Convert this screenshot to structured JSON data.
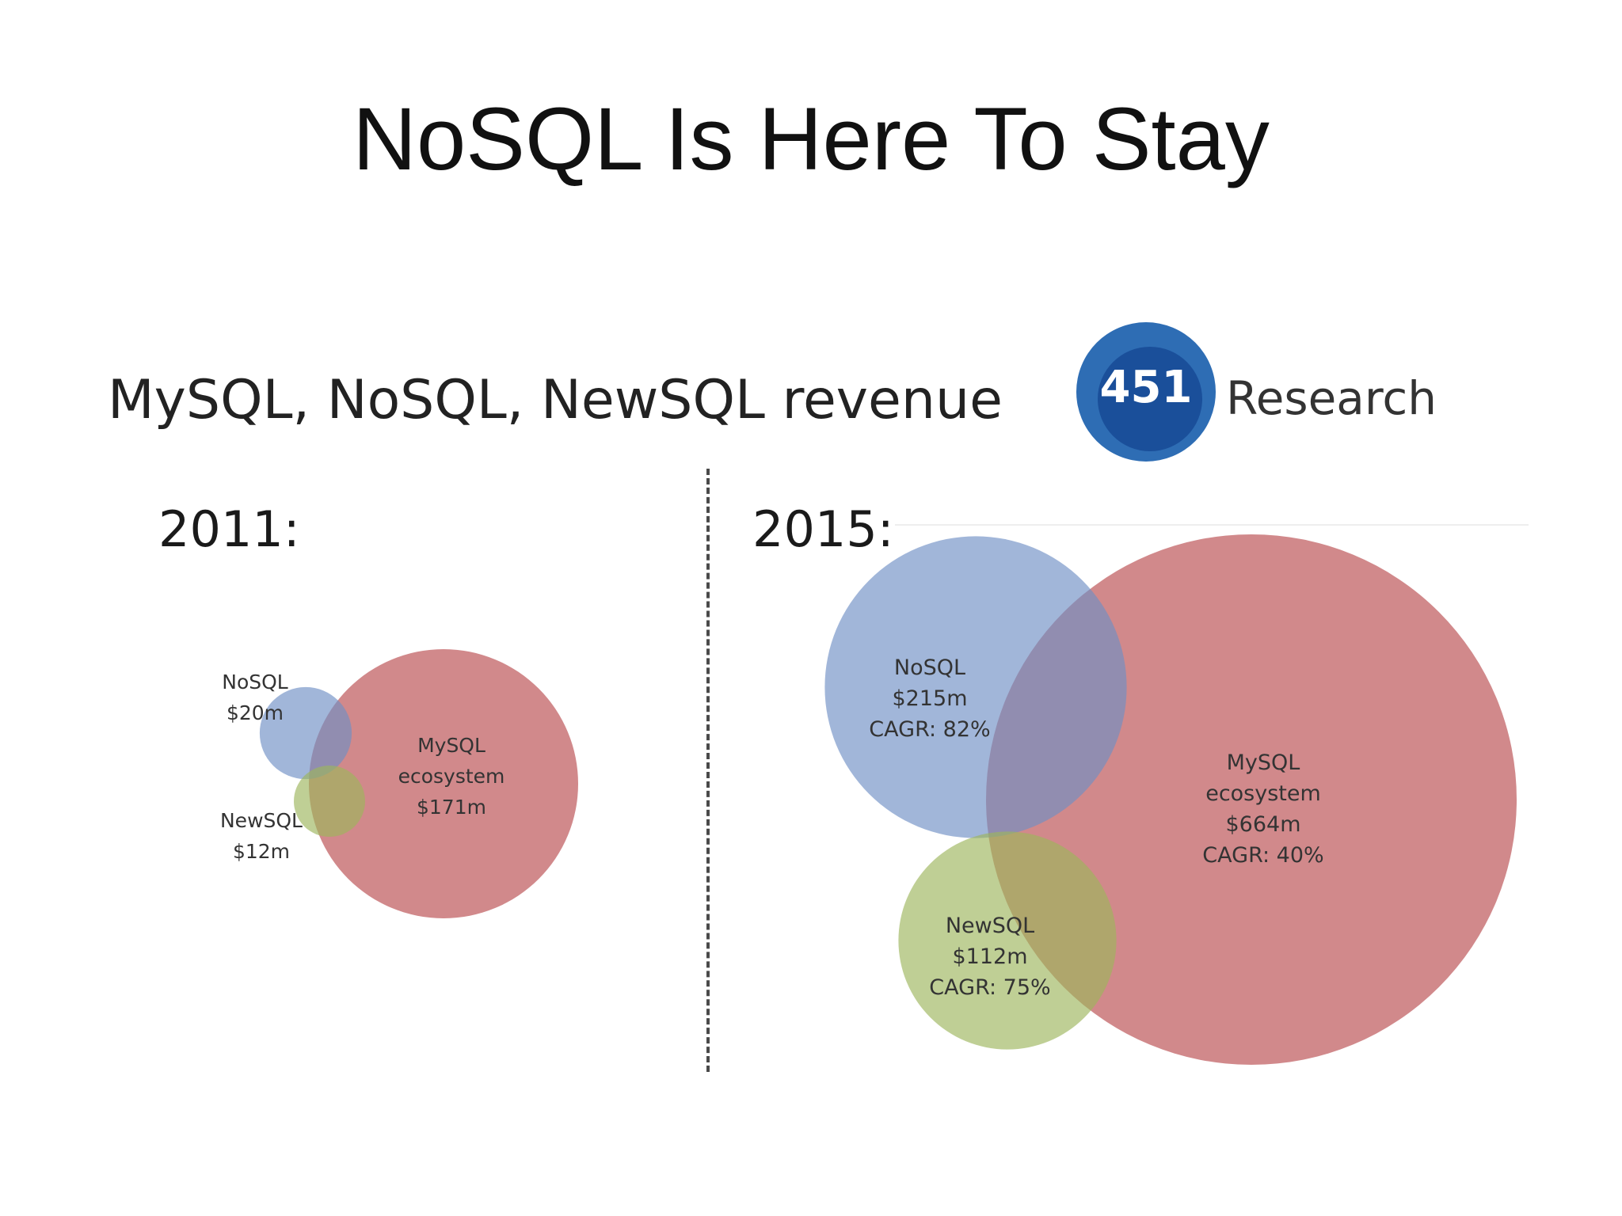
{
  "slide": {
    "title": "NoSQL Is Here To Stay"
  },
  "logo": {
    "number": "451",
    "word": "Research",
    "colors": {
      "outer": "#2e6db4",
      "inner": "#1a4f9a"
    }
  },
  "chart_data": {
    "type": "bubble",
    "title": "MySQL, NoSQL, NewSQL revenue",
    "panels": [
      {
        "year": "2011:",
        "bubbles": [
          {
            "id": "mysql",
            "value": 171,
            "color": "#b94a4d",
            "labels": [
              "MySQL",
              "ecosystem",
              "$171m"
            ]
          },
          {
            "id": "nosql",
            "value": 20,
            "color": "#6f8fc4",
            "labels": [
              "NoSQL",
              "$20m"
            ]
          },
          {
            "id": "newsql",
            "value": 12,
            "color": "#9cb65c",
            "labels": [
              "NewSQL",
              "$12m"
            ]
          }
        ]
      },
      {
        "year": "2015:",
        "bubbles": [
          {
            "id": "mysql",
            "value": 664,
            "cagr": 40,
            "color": "#b94a4d",
            "labels": [
              "MySQL",
              "ecosystem",
              "$664m",
              "CAGR: 40%"
            ]
          },
          {
            "id": "nosql",
            "value": 215,
            "cagr": 82,
            "color": "#6f8fc4",
            "labels": [
              "NoSQL",
              "$215m",
              "CAGR: 82%"
            ]
          },
          {
            "id": "newsql",
            "value": 112,
            "cagr": 75,
            "color": "#9cb65c",
            "labels": [
              "NewSQL",
              "$112m",
              "CAGR: 75%"
            ]
          }
        ]
      }
    ]
  }
}
